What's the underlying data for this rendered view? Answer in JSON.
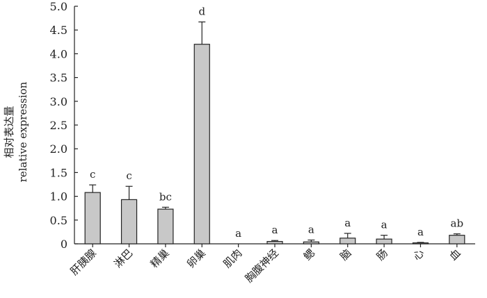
{
  "chart_data": {
    "type": "bar",
    "ylabel_cn": "相对表达量",
    "ylabel_en": "relative expression",
    "xlabel": "",
    "ylim": [
      0,
      5.0
    ],
    "yticks": [
      "0",
      "0.5",
      "1.0",
      "1.5",
      "2.0",
      "2.5",
      "3.0",
      "3.5",
      "4.0",
      "4.5",
      "5.0"
    ],
    "grid": false,
    "bar_color": "#c8c8c8",
    "categories": [
      "肝胰腺",
      "淋巴",
      "精巢",
      "卵巢",
      "肌肉",
      "胸腹神经",
      "鳃",
      "脑",
      "肠",
      "心",
      "血"
    ],
    "values": [
      1.08,
      0.93,
      0.73,
      4.2,
      0.0,
      0.05,
      0.04,
      0.12,
      0.1,
      0.02,
      0.18
    ],
    "errors": [
      0.16,
      0.28,
      0.04,
      0.47,
      0.0,
      0.02,
      0.04,
      0.1,
      0.08,
      0.01,
      0.03
    ],
    "significance": [
      "c",
      "c",
      "bc",
      "d",
      "a",
      "a",
      "a",
      "a",
      "a",
      "a",
      "ab"
    ]
  }
}
